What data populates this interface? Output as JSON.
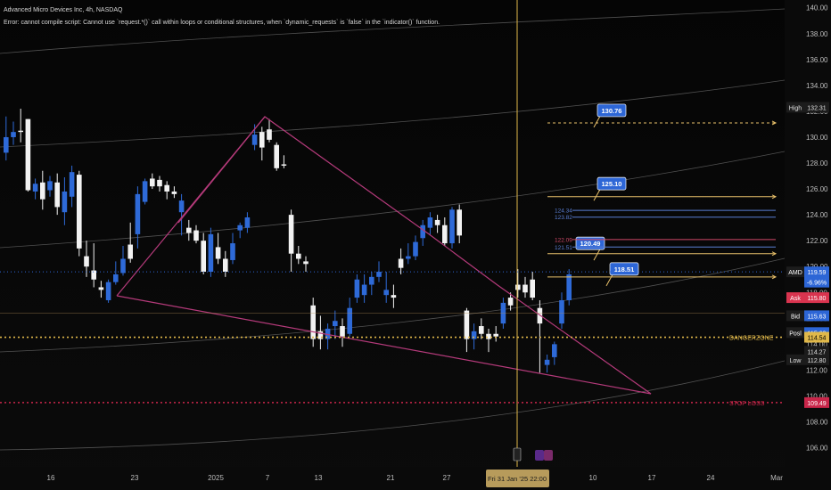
{
  "header": {
    "title": "Advanced Micro Devices Inc, 4h, NASDAQ",
    "error": "Error: cannot compile script: Cannot use `request.*()` call within loops or conditional structures, when `dynamic_requests` is `false` in the `indicator()` function."
  },
  "chart_data": {
    "type": "candlestick",
    "symbol": "AMD",
    "ylim": [
      104.8,
      140.6
    ],
    "y_ticks": [
      106.0,
      108.0,
      110.0,
      112.0,
      114.0,
      116.0,
      118.0,
      120.0,
      122.0,
      124.0,
      126.0,
      128.0,
      130.0,
      132.0,
      134.0,
      136.0,
      138.0,
      140.0
    ],
    "x_ticks": [
      "16",
      "23",
      "2025",
      "7",
      "13",
      "21",
      "27",
      "10",
      "17",
      "24",
      "Mar"
    ],
    "crosshair_label": "Fri 31 Jan '25   22:00",
    "candles": [
      {
        "o": 128.8,
        "h": 131.6,
        "l": 128.2,
        "c": 130.0,
        "bull": true
      },
      {
        "o": 130.0,
        "h": 131.2,
        "l": 129.4,
        "c": 130.4,
        "bull": true
      },
      {
        "o": 130.5,
        "h": 132.2,
        "l": 129.6,
        "c": 130.4,
        "bull": false
      },
      {
        "o": 131.4,
        "h": 131.4,
        "l": 125.8,
        "c": 125.9,
        "bull": false
      },
      {
        "o": 125.8,
        "h": 126.8,
        "l": 125.2,
        "c": 126.4,
        "bull": true
      },
      {
        "o": 126.5,
        "h": 127.4,
        "l": 124.4,
        "c": 125.2,
        "bull": false
      },
      {
        "o": 125.9,
        "h": 127.0,
        "l": 125.4,
        "c": 126.6,
        "bull": true
      },
      {
        "o": 126.5,
        "h": 127.2,
        "l": 124.0,
        "c": 124.6,
        "bull": false
      },
      {
        "o": 124.2,
        "h": 126.9,
        "l": 123.2,
        "c": 125.8,
        "bull": true
      },
      {
        "o": 127.3,
        "h": 127.8,
        "l": 124.6,
        "c": 125.4,
        "bull": true
      },
      {
        "o": 127.1,
        "h": 127.4,
        "l": 120.8,
        "c": 121.4,
        "bull": false
      },
      {
        "o": 120.8,
        "h": 122.0,
        "l": 119.2,
        "c": 120.0,
        "bull": false
      },
      {
        "o": 119.7,
        "h": 121.8,
        "l": 118.4,
        "c": 119.0,
        "bull": false
      },
      {
        "o": 118.2,
        "h": 118.9,
        "l": 117.6,
        "c": 118.4,
        "bull": false
      },
      {
        "o": 117.4,
        "h": 119.0,
        "l": 117.2,
        "c": 118.8,
        "bull": true
      },
      {
        "o": 118.8,
        "h": 120.4,
        "l": 118.6,
        "c": 119.4,
        "bull": true
      },
      {
        "o": 119.5,
        "h": 121.6,
        "l": 119.3,
        "c": 120.6,
        "bull": true
      },
      {
        "o": 120.6,
        "h": 123.4,
        "l": 120.3,
        "c": 121.7,
        "bull": false
      },
      {
        "o": 122.5,
        "h": 126.2,
        "l": 121.4,
        "c": 125.6,
        "bull": true
      },
      {
        "o": 125.0,
        "h": 126.8,
        "l": 124.8,
        "c": 126.6,
        "bull": true
      },
      {
        "o": 126.8,
        "h": 127.2,
        "l": 126.0,
        "c": 126.2,
        "bull": false
      },
      {
        "o": 126.7,
        "h": 127.0,
        "l": 125.8,
        "c": 126.2,
        "bull": false
      },
      {
        "o": 126.3,
        "h": 126.6,
        "l": 125.2,
        "c": 125.8,
        "bull": false
      },
      {
        "o": 125.8,
        "h": 126.2,
        "l": 125.3,
        "c": 125.6,
        "bull": false
      },
      {
        "o": 124.2,
        "h": 125.6,
        "l": 122.4,
        "c": 125.1,
        "bull": true
      },
      {
        "o": 123.0,
        "h": 123.6,
        "l": 122.0,
        "c": 122.6,
        "bull": false
      },
      {
        "o": 122.8,
        "h": 123.2,
        "l": 121.8,
        "c": 122.0,
        "bull": false
      },
      {
        "o": 122.0,
        "h": 122.6,
        "l": 119.4,
        "c": 119.6,
        "bull": false
      },
      {
        "o": 119.6,
        "h": 123.0,
        "l": 119.2,
        "c": 122.5,
        "bull": true
      },
      {
        "o": 121.5,
        "h": 122.6,
        "l": 120.2,
        "c": 120.6,
        "bull": false
      },
      {
        "o": 120.6,
        "h": 121.2,
        "l": 119.2,
        "c": 119.6,
        "bull": false
      },
      {
        "o": 120.5,
        "h": 122.6,
        "l": 120.2,
        "c": 121.8,
        "bull": true
      },
      {
        "o": 122.8,
        "h": 123.4,
        "l": 122.2,
        "c": 123.2,
        "bull": true
      },
      {
        "o": 123.0,
        "h": 124.2,
        "l": 122.6,
        "c": 123.8,
        "bull": true
      },
      {
        "o": 130.2,
        "h": 131.0,
        "l": 129.0,
        "c": 129.4,
        "bull": true
      },
      {
        "o": 129.2,
        "h": 130.8,
        "l": 128.2,
        "c": 130.4,
        "bull": false
      },
      {
        "o": 130.6,
        "h": 131.4,
        "l": 129.6,
        "c": 129.8,
        "bull": false
      },
      {
        "o": 129.4,
        "h": 129.6,
        "l": 127.4,
        "c": 127.6,
        "bull": false
      },
      {
        "o": 127.8,
        "h": 128.6,
        "l": 127.6,
        "c": 127.9,
        "bull": false
      },
      {
        "o": 124.0,
        "h": 124.4,
        "l": 119.6,
        "c": 121.0,
        "bull": false
      },
      {
        "o": 121.0,
        "h": 121.6,
        "l": 120.2,
        "c": 120.6,
        "bull": false
      },
      {
        "o": 120.4,
        "h": 120.8,
        "l": 119.6,
        "c": 120.2,
        "bull": false
      },
      {
        "o": 117.0,
        "h": 117.6,
        "l": 113.8,
        "c": 114.4,
        "bull": false
      },
      {
        "o": 114.4,
        "h": 116.2,
        "l": 113.6,
        "c": 115.0,
        "bull": false
      },
      {
        "o": 114.4,
        "h": 115.6,
        "l": 113.6,
        "c": 115.2,
        "bull": true
      },
      {
        "o": 115.4,
        "h": 116.6,
        "l": 114.4,
        "c": 115.8,
        "bull": true
      },
      {
        "o": 115.4,
        "h": 116.0,
        "l": 113.8,
        "c": 114.6,
        "bull": false
      },
      {
        "o": 114.8,
        "h": 117.6,
        "l": 114.6,
        "c": 116.8,
        "bull": true
      },
      {
        "o": 117.6,
        "h": 119.4,
        "l": 117.2,
        "c": 119.0,
        "bull": true
      },
      {
        "o": 117.8,
        "h": 119.4,
        "l": 117.2,
        "c": 118.6,
        "bull": true
      },
      {
        "o": 118.6,
        "h": 119.6,
        "l": 117.8,
        "c": 119.2,
        "bull": true
      },
      {
        "o": 119.2,
        "h": 120.4,
        "l": 118.8,
        "c": 119.6,
        "bull": true
      },
      {
        "o": 117.8,
        "h": 119.6,
        "l": 117.2,
        "c": 118.2,
        "bull": true
      },
      {
        "o": 117.8,
        "h": 118.6,
        "l": 116.8,
        "c": 117.6,
        "bull": false
      },
      {
        "o": 120.6,
        "h": 121.4,
        "l": 119.4,
        "c": 119.9,
        "bull": false
      },
      {
        "o": 120.6,
        "h": 121.8,
        "l": 120.2,
        "c": 120.8,
        "bull": true
      },
      {
        "o": 120.8,
        "h": 122.4,
        "l": 120.5,
        "c": 121.9,
        "bull": true
      },
      {
        "o": 122.2,
        "h": 123.6,
        "l": 121.6,
        "c": 123.2,
        "bull": true
      },
      {
        "o": 123.0,
        "h": 124.2,
        "l": 122.4,
        "c": 123.8,
        "bull": true
      },
      {
        "o": 123.6,
        "h": 124.0,
        "l": 122.6,
        "c": 123.2,
        "bull": false
      },
      {
        "o": 123.2,
        "h": 123.8,
        "l": 121.6,
        "c": 121.8,
        "bull": false
      },
      {
        "o": 121.8,
        "h": 124.6,
        "l": 121.4,
        "c": 124.4,
        "bull": true
      },
      {
        "o": 124.4,
        "h": 124.8,
        "l": 121.8,
        "c": 122.4,
        "bull": false
      },
      {
        "o": 116.6,
        "h": 116.8,
        "l": 113.4,
        "c": 114.4,
        "bull": false
      },
      {
        "o": 114.4,
        "h": 115.6,
        "l": 113.6,
        "c": 115.0,
        "bull": true
      },
      {
        "o": 115.4,
        "h": 116.0,
        "l": 114.4,
        "c": 114.8,
        "bull": false
      },
      {
        "o": 114.8,
        "h": 115.2,
        "l": 113.4,
        "c": 114.4,
        "bull": false
      },
      {
        "o": 114.6,
        "h": 115.4,
        "l": 114.2,
        "c": 114.8,
        "bull": false
      },
      {
        "o": 115.6,
        "h": 117.6,
        "l": 115.2,
        "c": 117.2,
        "bull": true
      },
      {
        "o": 117.0,
        "h": 118.0,
        "l": 116.6,
        "c": 117.6,
        "bull": false
      },
      {
        "o": 118.2,
        "h": 119.8,
        "l": 117.6,
        "c": 118.6,
        "bull": false
      },
      {
        "o": 118.6,
        "h": 119.2,
        "l": 117.6,
        "c": 118.0,
        "bull": false
      },
      {
        "o": 119.0,
        "h": 119.6,
        "l": 117.4,
        "c": 117.6,
        "bull": false
      },
      {
        "o": 116.8,
        "h": 117.4,
        "l": 111.8,
        "c": 115.6,
        "bull": false
      },
      {
        "o": 112.4,
        "h": 113.2,
        "l": 111.8,
        "c": 112.8,
        "bull": true
      },
      {
        "o": 113.0,
        "h": 114.2,
        "l": 112.4,
        "c": 114.0,
        "bull": true
      },
      {
        "o": 115.6,
        "h": 118.0,
        "l": 115.2,
        "c": 117.4,
        "bull": true
      },
      {
        "o": 117.4,
        "h": 119.8,
        "l": 117.0,
        "c": 119.4,
        "bull": true
      }
    ],
    "levels": {
      "targets": [
        {
          "label": "130.76",
          "value": 131.1,
          "tip": 130.76
        },
        {
          "label": "125.10",
          "value": 125.4,
          "tip": 125.1
        },
        {
          "label": "120.49",
          "value": 121.0,
          "tip": 120.49
        },
        {
          "label": "118.51",
          "value": 119.2,
          "tip": 118.51
        }
      ],
      "left_labels": [
        {
          "label": "124.34",
          "value": 124.34,
          "color": "#5a7fd4"
        },
        {
          "label": "123.82",
          "value": 123.82,
          "color": "#5a7fd4"
        },
        {
          "label": "122.09",
          "value": 122.09,
          "color": "#d24a6a"
        },
        {
          "label": "121.51",
          "value": 121.51,
          "color": "#5a7fd4"
        }
      ],
      "dangerzone": {
        "label": "DANGERZONE",
        "value": 114.54
      },
      "stop_loss": {
        "label": "STOP LOSS",
        "value": 109.49
      }
    }
  },
  "price_tags": [
    {
      "name": "high-tag",
      "key": "High",
      "value": "132.31",
      "y": 132.31,
      "bg": "#1c1c1c",
      "fg": "#e0e0e0",
      "keybg": "#1c1c1c"
    },
    {
      "name": "last-price-tag",
      "key": "AMD",
      "value": "119.59",
      "y": 119.59,
      "bg": "#2d66d6",
      "fg": "#ffffff",
      "keybg": "#1c1c1c"
    },
    {
      "name": "change-tag",
      "key": "",
      "value": "-6.96%",
      "y": 118.8,
      "bg": "#2d66d6",
      "fg": "#ffffff",
      "keybg": "#2d66d6"
    },
    {
      "name": "ask-tag",
      "key": "Ask",
      "value": "115.80",
      "y": 117.6,
      "bg": "#d9344f",
      "fg": "#ffffff",
      "keybg": "#d9344f"
    },
    {
      "name": "bid-tag",
      "key": "Bid",
      "value": "115.63",
      "y": 116.2,
      "bg": "#2d66d6",
      "fg": "#ffffff",
      "keybg": "#1c1c1c"
    },
    {
      "name": "position-tag",
      "key": "Posl",
      "value": "115.63",
      "y": 114.9,
      "bg": "#2d66d6",
      "fg": "#ffffff",
      "keybg": "#1c1c1c"
    },
    {
      "name": "dangerzone-price-tag",
      "key": "",
      "value": "114.54",
      "y": 114.54,
      "bg": "#e0b84a",
      "fg": "#000000",
      "keybg": "#e0b84a"
    },
    {
      "name": "crosshair-price-tag",
      "key": "",
      "value": "114.27",
      "y": 113.45,
      "bg": "#1c1c1c",
      "fg": "#e0e0e0",
      "keybg": "#1c1c1c"
    },
    {
      "name": "low-tag",
      "key": "Low",
      "value": "112.80",
      "y": 112.8,
      "bg": "#1c1c1c",
      "fg": "#e0e0e0",
      "keybg": "#1c1c1c"
    },
    {
      "name": "stop-loss-price-tag",
      "key": "",
      "value": "109.49",
      "y": 109.49,
      "bg": "#c9264a",
      "fg": "#ffffff",
      "keybg": "#c9264a"
    }
  ],
  "colors": {
    "bull": "#2e6ad8",
    "bear": "#f2f2f2",
    "triangle": "#b43a7a",
    "target": "#e8c06a",
    "dz": "#e0b84a",
    "stop": "#c9264a",
    "grid_curve": "#8c8c8c",
    "crosshair": "#e0b84a"
  }
}
